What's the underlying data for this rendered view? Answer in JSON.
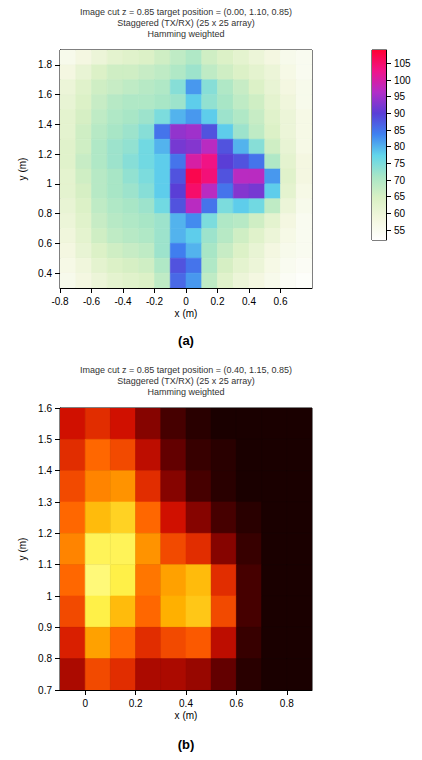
{
  "chart_data": [
    {
      "type": "heatmap",
      "panel": "(a)",
      "title": [
        "Image cut z = 0.85 target position = (0.00, 1.10, 0.85)",
        "Staggered (TX/RX) (25 x 25 array)",
        "Hamming weighted"
      ],
      "x_label": "x (m)",
      "y_label": "y (m)",
      "xlim": [
        -0.8,
        0.8
      ],
      "ylim": [
        0.3,
        1.9
      ],
      "xticks": [
        -0.8,
        -0.6,
        -0.4,
        -0.2,
        0,
        0.2,
        0.4,
        0.6
      ],
      "yticks": [
        0.4,
        0.6,
        0.8,
        1,
        1.2,
        1.4,
        1.6,
        1.8
      ],
      "x": [
        -0.75,
        -0.65,
        -0.55,
        -0.45,
        -0.35,
        -0.25,
        -0.15,
        -0.05,
        0.05,
        0.15,
        0.25,
        0.35,
        0.45,
        0.55,
        0.65,
        0.75
      ],
      "y": [
        1.85,
        1.75,
        1.65,
        1.55,
        1.45,
        1.35,
        1.25,
        1.15,
        1.05,
        0.95,
        0.85,
        0.75,
        0.65,
        0.55,
        0.45,
        0.35
      ],
      "values": [
        [
          56,
          58,
          60,
          62,
          63,
          64,
          66,
          68,
          70,
          66,
          64,
          62,
          60,
          58,
          56,
          55
        ],
        [
          58,
          61,
          64,
          66,
          66,
          67,
          68,
          70,
          72,
          68,
          66,
          64,
          62,
          60,
          57,
          55
        ],
        [
          60,
          63,
          66,
          67,
          68,
          69,
          70,
          74,
          82,
          74,
          70,
          67,
          64,
          61,
          58,
          56
        ],
        [
          61,
          64,
          67,
          69,
          70,
          70,
          71,
          72,
          78,
          73,
          71,
          68,
          66,
          62,
          59,
          56
        ],
        [
          62,
          65,
          68,
          70,
          71,
          72,
          75,
          80,
          82,
          78,
          72,
          70,
          67,
          63,
          60,
          57
        ],
        [
          62,
          66,
          69,
          71,
          72,
          74,
          85,
          94,
          95,
          88,
          78,
          72,
          68,
          64,
          60,
          57
        ],
        [
          63,
          66,
          70,
          72,
          73,
          76,
          80,
          92,
          93,
          97,
          88,
          80,
          74,
          66,
          61,
          57
        ],
        [
          63,
          67,
          70,
          72,
          74,
          76,
          78,
          85,
          100,
          103,
          90,
          88,
          85,
          70,
          62,
          58
        ],
        [
          62,
          66,
          69,
          71,
          73,
          75,
          78,
          88,
          107,
          104,
          88,
          97,
          97,
          82,
          63,
          58
        ],
        [
          62,
          65,
          69,
          71,
          72,
          74,
          78,
          90,
          105,
          97,
          85,
          93,
          92,
          78,
          62,
          57
        ],
        [
          61,
          64,
          68,
          70,
          71,
          72,
          76,
          88,
          97,
          85,
          75,
          78,
          76,
          68,
          60,
          56
        ],
        [
          60,
          63,
          67,
          69,
          70,
          71,
          72,
          80,
          83,
          75,
          70,
          69,
          66,
          62,
          58,
          55
        ],
        [
          59,
          62,
          66,
          68,
          69,
          70,
          72,
          80,
          78,
          72,
          69,
          66,
          63,
          60,
          57,
          55
        ],
        [
          58,
          61,
          64,
          66,
          67,
          68,
          72,
          84,
          80,
          71,
          67,
          64,
          61,
          58,
          56,
          55
        ],
        [
          57,
          59,
          62,
          64,
          65,
          66,
          70,
          88,
          85,
          70,
          65,
          62,
          60,
          57,
          55,
          54
        ],
        [
          56,
          58,
          60,
          62,
          63,
          64,
          68,
          86,
          82,
          68,
          63,
          60,
          58,
          56,
          54,
          53
        ]
      ],
      "colorbar": {
        "range": [
          52,
          109
        ],
        "ticks": [
          55,
          60,
          65,
          70,
          75,
          80,
          85,
          90,
          95,
          100,
          105
        ]
      }
    },
    {
      "type": "heatmap",
      "panel": "(b)",
      "title": [
        "Image cut z = 0.85 target position = (0.40, 1.15, 0.85)",
        "Staggered (TX/RX) (25 x 25 array)",
        "Hamming weighted"
      ],
      "x_label": "x (m)",
      "y_label": "y (m)",
      "xlim": [
        -0.1,
        0.9
      ],
      "ylim": [
        0.7,
        1.6
      ],
      "xticks": [
        0,
        0.2,
        0.4,
        0.6,
        0.8
      ],
      "yticks": [
        0.7,
        0.8,
        0.9,
        1,
        1.1,
        1.2,
        1.3,
        1.4,
        1.5,
        1.6
      ],
      "x": [
        -0.05,
        0.05,
        0.15,
        0.25,
        0.35,
        0.45,
        0.55,
        0.65,
        0.75,
        0.85
      ],
      "y": [
        1.55,
        1.45,
        1.35,
        1.25,
        1.15,
        1.05,
        0.95,
        0.85,
        0.75
      ],
      "values": [
        [
          86,
          88,
          86,
          82,
          78,
          76,
          75,
          75,
          75,
          75
        ],
        [
          88,
          92,
          90,
          85,
          80,
          77,
          76,
          75,
          75,
          75
        ],
        [
          90,
          94,
          95,
          88,
          82,
          78,
          76,
          75,
          75,
          75
        ],
        [
          92,
          98,
          100,
          92,
          86,
          82,
          78,
          76,
          75,
          75
        ],
        [
          94,
          104,
          104,
          95,
          90,
          88,
          82,
          77,
          75,
          75
        ],
        [
          92,
          106,
          103,
          93,
          96,
          98,
          88,
          78,
          75,
          75
        ],
        [
          90,
          103,
          98,
          92,
          97,
          99,
          90,
          78,
          75,
          75
        ],
        [
          87,
          96,
          92,
          88,
          90,
          91,
          85,
          77,
          75,
          75
        ],
        [
          84,
          90,
          88,
          84,
          84,
          83,
          80,
          76,
          75,
          75
        ]
      ],
      "color_range": [
        75,
        108
      ]
    }
  ]
}
